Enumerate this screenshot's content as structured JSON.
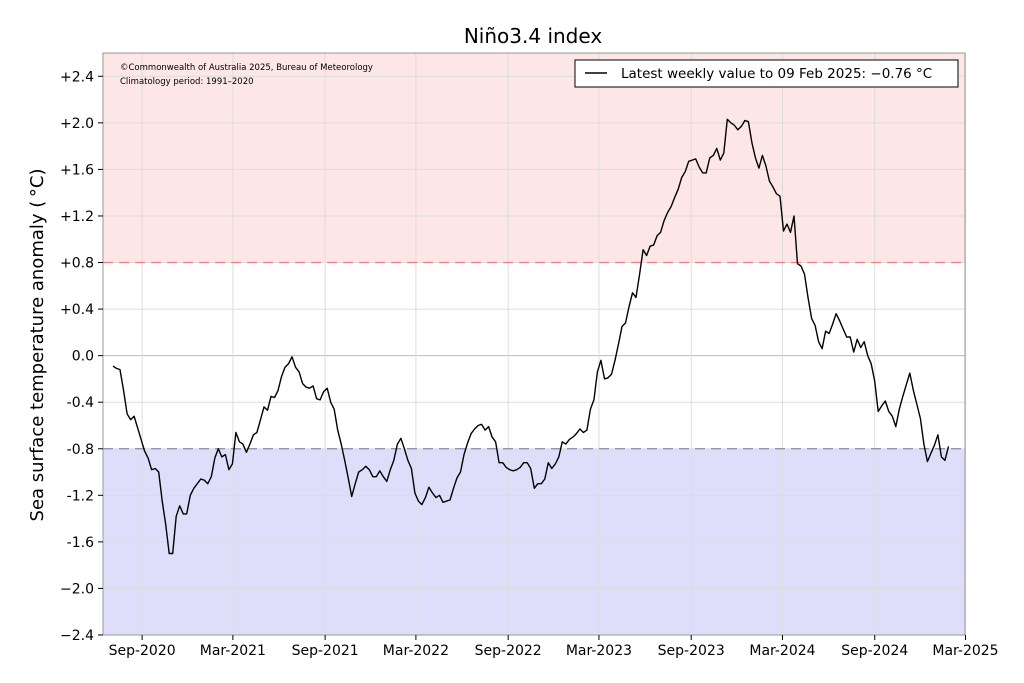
{
  "chart_data": {
    "type": "line",
    "title": "Niño3.4 index",
    "ylabel": "Sea surface temperature anomaly ( °C)",
    "xlabel": "",
    "credit_lines": [
      "©Commonwealth of Australia 2025, Bureau of Meteorology",
      "Climatology period: 1991–2020"
    ],
    "legend": {
      "label": "Latest weekly value to 09 Feb 2025: −0.76 °C",
      "placement": "top-right"
    },
    "ylim": [
      -2.4,
      2.6
    ],
    "yticks": [
      {
        "value": 2.4,
        "label": "+2.4"
      },
      {
        "value": 2.0,
        "label": "+2.0"
      },
      {
        "value": 1.6,
        "label": "+1.6"
      },
      {
        "value": 1.2,
        "label": "+1.2"
      },
      {
        "value": 0.8,
        "label": "+0.8"
      },
      {
        "value": 0.4,
        "label": "+0.4"
      },
      {
        "value": 0.0,
        "label": "0.0"
      },
      {
        "value": -0.4,
        "label": "-0.4"
      },
      {
        "value": -0.8,
        "label": "-0.8"
      },
      {
        "value": -1.2,
        "label": "-1.2"
      },
      {
        "value": -1.6,
        "label": "-1.6"
      },
      {
        "value": -2.0,
        "label": "−2.0"
      },
      {
        "value": -2.4,
        "label": "−2.4"
      }
    ],
    "xlim": [
      "2020-06-15",
      "2025-02-28"
    ],
    "xticks": [
      {
        "date": "2020-09-01",
        "label": "Sep-2020"
      },
      {
        "date": "2021-03-01",
        "label": "Mar-2021"
      },
      {
        "date": "2021-09-01",
        "label": "Sep-2021"
      },
      {
        "date": "2022-03-01",
        "label": "Mar-2022"
      },
      {
        "date": "2022-09-01",
        "label": "Sep-2022"
      },
      {
        "date": "2023-03-01",
        "label": "Mar-2023"
      },
      {
        "date": "2023-09-01",
        "label": "Sep-2023"
      },
      {
        "date": "2024-03-01",
        "label": "Mar-2024"
      },
      {
        "date": "2024-09-01",
        "label": "Sep-2024"
      },
      {
        "date": "2025-03-01",
        "label": "Mar-2025"
      }
    ],
    "thresholds": [
      {
        "value": 0.8,
        "color": "#f08080"
      },
      {
        "value": -0.8,
        "color": "#8888aa"
      }
    ],
    "bands": [
      {
        "from": 0.8,
        "to": 2.6,
        "color": "#fde6e6"
      },
      {
        "from": -2.4,
        "to": -0.8,
        "color": "#dedefb"
      }
    ],
    "grid": true,
    "series": [
      {
        "color": "#000000",
        "points": [
          [
            "2020-07-05",
            -0.09
          ],
          [
            "2020-07-12",
            -0.11
          ],
          [
            "2020-07-19",
            -0.12
          ],
          [
            "2020-07-26",
            -0.3
          ],
          [
            "2020-08-02",
            -0.5
          ],
          [
            "2020-08-09",
            -0.55
          ],
          [
            "2020-08-16",
            -0.52
          ],
          [
            "2020-08-23",
            -0.62
          ],
          [
            "2020-08-30",
            -0.72
          ],
          [
            "2020-09-06",
            -0.82
          ],
          [
            "2020-09-13",
            -0.88
          ],
          [
            "2020-09-20",
            -0.98
          ],
          [
            "2020-09-27",
            -0.97
          ],
          [
            "2020-10-04",
            -1.0
          ],
          [
            "2020-10-11",
            -1.25
          ],
          [
            "2020-10-18",
            -1.45
          ],
          [
            "2020-10-25",
            -1.7
          ],
          [
            "2020-11-01",
            -1.7
          ],
          [
            "2020-11-08",
            -1.38
          ],
          [
            "2020-11-15",
            -1.29
          ],
          [
            "2020-11-22",
            -1.36
          ],
          [
            "2020-11-29",
            -1.36
          ],
          [
            "2020-12-06",
            -1.2
          ],
          [
            "2020-12-13",
            -1.14
          ],
          [
            "2020-12-20",
            -1.1
          ],
          [
            "2020-12-27",
            -1.06
          ],
          [
            "2021-01-03",
            -1.07
          ],
          [
            "2021-01-10",
            -1.1
          ],
          [
            "2021-01-17",
            -1.04
          ],
          [
            "2021-01-24",
            -0.88
          ],
          [
            "2021-01-31",
            -0.8
          ],
          [
            "2021-02-07",
            -0.87
          ],
          [
            "2021-02-14",
            -0.85
          ],
          [
            "2021-02-21",
            -0.98
          ],
          [
            "2021-02-28",
            -0.93
          ],
          [
            "2021-03-07",
            -0.66
          ],
          [
            "2021-03-14",
            -0.74
          ],
          [
            "2021-03-21",
            -0.76
          ],
          [
            "2021-03-28",
            -0.83
          ],
          [
            "2021-04-04",
            -0.76
          ],
          [
            "2021-04-11",
            -0.68
          ],
          [
            "2021-04-18",
            -0.66
          ],
          [
            "2021-04-25",
            -0.55
          ],
          [
            "2021-05-02",
            -0.44
          ],
          [
            "2021-05-09",
            -0.47
          ],
          [
            "2021-05-16",
            -0.35
          ],
          [
            "2021-05-23",
            -0.36
          ],
          [
            "2021-05-30",
            -0.3
          ],
          [
            "2021-06-06",
            -0.18
          ],
          [
            "2021-06-13",
            -0.1
          ],
          [
            "2021-06-20",
            -0.07
          ],
          [
            "2021-06-27",
            -0.01
          ],
          [
            "2021-07-04",
            -0.1
          ],
          [
            "2021-07-11",
            -0.14
          ],
          [
            "2021-07-18",
            -0.24
          ],
          [
            "2021-07-25",
            -0.27
          ],
          [
            "2021-08-01",
            -0.28
          ],
          [
            "2021-08-08",
            -0.26
          ],
          [
            "2021-08-15",
            -0.37
          ],
          [
            "2021-08-22",
            -0.38
          ],
          [
            "2021-08-29",
            -0.31
          ],
          [
            "2021-09-05",
            -0.28
          ],
          [
            "2021-09-12",
            -0.4
          ],
          [
            "2021-09-19",
            -0.46
          ],
          [
            "2021-09-26",
            -0.64
          ],
          [
            "2021-10-03",
            -0.76
          ],
          [
            "2021-10-10",
            -0.9
          ],
          [
            "2021-10-17",
            -1.05
          ],
          [
            "2021-10-24",
            -1.21
          ],
          [
            "2021-10-31",
            -1.1
          ],
          [
            "2021-11-07",
            -1.0
          ],
          [
            "2021-11-14",
            -0.98
          ],
          [
            "2021-11-21",
            -0.95
          ],
          [
            "2021-11-28",
            -0.98
          ],
          [
            "2021-12-05",
            -1.04
          ],
          [
            "2021-12-12",
            -1.04
          ],
          [
            "2021-12-19",
            -0.99
          ],
          [
            "2021-12-26",
            -1.04
          ],
          [
            "2022-01-02",
            -1.08
          ],
          [
            "2022-01-09",
            -0.98
          ],
          [
            "2022-01-16",
            -0.9
          ],
          [
            "2022-01-23",
            -0.76
          ],
          [
            "2022-01-30",
            -0.71
          ],
          [
            "2022-02-06",
            -0.8
          ],
          [
            "2022-02-13",
            -0.9
          ],
          [
            "2022-02-20",
            -0.97
          ],
          [
            "2022-02-27",
            -1.18
          ],
          [
            "2022-03-06",
            -1.25
          ],
          [
            "2022-03-13",
            -1.28
          ],
          [
            "2022-03-20",
            -1.22
          ],
          [
            "2022-03-27",
            -1.13
          ],
          [
            "2022-04-03",
            -1.18
          ],
          [
            "2022-04-10",
            -1.22
          ],
          [
            "2022-04-17",
            -1.2
          ],
          [
            "2022-04-24",
            -1.26
          ],
          [
            "2022-05-01",
            -1.25
          ],
          [
            "2022-05-08",
            -1.24
          ],
          [
            "2022-05-15",
            -1.14
          ],
          [
            "2022-05-22",
            -1.05
          ],
          [
            "2022-05-29",
            -1.0
          ],
          [
            "2022-06-05",
            -0.85
          ],
          [
            "2022-06-12",
            -0.75
          ],
          [
            "2022-06-19",
            -0.67
          ],
          [
            "2022-06-26",
            -0.63
          ],
          [
            "2022-07-03",
            -0.6
          ],
          [
            "2022-07-10",
            -0.59
          ],
          [
            "2022-07-17",
            -0.64
          ],
          [
            "2022-07-24",
            -0.61
          ],
          [
            "2022-07-31",
            -0.7
          ],
          [
            "2022-08-07",
            -0.74
          ],
          [
            "2022-08-14",
            -0.92
          ],
          [
            "2022-08-21",
            -0.92
          ],
          [
            "2022-08-28",
            -0.96
          ],
          [
            "2022-09-04",
            -0.98
          ],
          [
            "2022-09-11",
            -0.99
          ],
          [
            "2022-09-18",
            -0.98
          ],
          [
            "2022-09-25",
            -0.96
          ],
          [
            "2022-10-02",
            -0.92
          ],
          [
            "2022-10-09",
            -0.92
          ],
          [
            "2022-10-16",
            -0.97
          ],
          [
            "2022-10-23",
            -1.14
          ],
          [
            "2022-10-30",
            -1.1
          ],
          [
            "2022-11-06",
            -1.1
          ],
          [
            "2022-11-13",
            -1.06
          ],
          [
            "2022-11-20",
            -0.92
          ],
          [
            "2022-11-27",
            -0.97
          ],
          [
            "2022-12-04",
            -0.93
          ],
          [
            "2022-12-11",
            -0.87
          ],
          [
            "2022-12-18",
            -0.74
          ],
          [
            "2022-12-25",
            -0.76
          ],
          [
            "2023-01-01",
            -0.72
          ],
          [
            "2023-01-08",
            -0.7
          ],
          [
            "2023-01-15",
            -0.67
          ],
          [
            "2023-01-22",
            -0.63
          ],
          [
            "2023-01-29",
            -0.66
          ],
          [
            "2023-02-05",
            -0.64
          ],
          [
            "2023-02-12",
            -0.46
          ],
          [
            "2023-02-19",
            -0.38
          ],
          [
            "2023-02-26",
            -0.14
          ],
          [
            "2023-03-05",
            -0.04
          ],
          [
            "2023-03-12",
            -0.2
          ],
          [
            "2023-03-19",
            -0.19
          ],
          [
            "2023-03-26",
            -0.16
          ],
          [
            "2023-04-02",
            -0.04
          ],
          [
            "2023-04-09",
            0.1
          ],
          [
            "2023-04-16",
            0.25
          ],
          [
            "2023-04-23",
            0.28
          ],
          [
            "2023-04-30",
            0.42
          ],
          [
            "2023-05-07",
            0.54
          ],
          [
            "2023-05-14",
            0.5
          ],
          [
            "2023-05-21",
            0.7
          ],
          [
            "2023-05-28",
            0.91
          ],
          [
            "2023-06-04",
            0.86
          ],
          [
            "2023-06-11",
            0.94
          ],
          [
            "2023-06-18",
            0.95
          ],
          [
            "2023-06-25",
            1.03
          ],
          [
            "2023-07-02",
            1.06
          ],
          [
            "2023-07-09",
            1.16
          ],
          [
            "2023-07-16",
            1.23
          ],
          [
            "2023-07-23",
            1.28
          ],
          [
            "2023-07-30",
            1.36
          ],
          [
            "2023-08-06",
            1.43
          ],
          [
            "2023-08-13",
            1.53
          ],
          [
            "2023-08-20",
            1.58
          ],
          [
            "2023-08-27",
            1.67
          ],
          [
            "2023-09-03",
            1.68
          ],
          [
            "2023-09-10",
            1.69
          ],
          [
            "2023-09-17",
            1.62
          ],
          [
            "2023-09-24",
            1.57
          ],
          [
            "2023-10-01",
            1.57
          ],
          [
            "2023-10-08",
            1.7
          ],
          [
            "2023-10-15",
            1.72
          ],
          [
            "2023-10-22",
            1.78
          ],
          [
            "2023-10-29",
            1.68
          ],
          [
            "2023-11-05",
            1.74
          ],
          [
            "2023-11-12",
            2.03
          ],
          [
            "2023-11-19",
            2.0
          ],
          [
            "2023-11-26",
            1.98
          ],
          [
            "2023-12-03",
            1.94
          ],
          [
            "2023-12-10",
            1.97
          ],
          [
            "2023-12-17",
            2.02
          ],
          [
            "2023-12-24",
            2.01
          ],
          [
            "2023-12-31",
            1.83
          ],
          [
            "2024-01-07",
            1.7
          ],
          [
            "2024-01-14",
            1.61
          ],
          [
            "2024-01-21",
            1.72
          ],
          [
            "2024-01-28",
            1.63
          ],
          [
            "2024-02-04",
            1.5
          ],
          [
            "2024-02-11",
            1.45
          ],
          [
            "2024-02-18",
            1.39
          ],
          [
            "2024-02-25",
            1.37
          ],
          [
            "2024-03-03",
            1.07
          ],
          [
            "2024-03-10",
            1.13
          ],
          [
            "2024-03-17",
            1.06
          ],
          [
            "2024-03-24",
            1.2
          ],
          [
            "2024-03-31",
            0.79
          ],
          [
            "2024-04-07",
            0.77
          ],
          [
            "2024-04-14",
            0.7
          ],
          [
            "2024-04-21",
            0.5
          ],
          [
            "2024-04-28",
            0.32
          ],
          [
            "2024-05-05",
            0.26
          ],
          [
            "2024-05-12",
            0.12
          ],
          [
            "2024-05-19",
            0.06
          ],
          [
            "2024-05-26",
            0.21
          ],
          [
            "2024-06-02",
            0.19
          ],
          [
            "2024-06-09",
            0.27
          ],
          [
            "2024-06-16",
            0.36
          ],
          [
            "2024-06-23",
            0.3
          ],
          [
            "2024-06-30",
            0.23
          ],
          [
            "2024-07-07",
            0.16
          ],
          [
            "2024-07-14",
            0.16
          ],
          [
            "2024-07-21",
            0.03
          ],
          [
            "2024-07-28",
            0.14
          ],
          [
            "2024-08-04",
            0.07
          ],
          [
            "2024-08-11",
            0.12
          ],
          [
            "2024-08-18",
            0.0
          ],
          [
            "2024-08-25",
            -0.07
          ],
          [
            "2024-09-01",
            -0.22
          ],
          [
            "2024-09-08",
            -0.48
          ],
          [
            "2024-09-15",
            -0.43
          ],
          [
            "2024-09-22",
            -0.39
          ],
          [
            "2024-09-29",
            -0.48
          ],
          [
            "2024-10-06",
            -0.52
          ],
          [
            "2024-10-13",
            -0.61
          ],
          [
            "2024-10-20",
            -0.46
          ],
          [
            "2024-10-27",
            -0.35
          ],
          [
            "2024-11-03",
            -0.25
          ],
          [
            "2024-11-10",
            -0.15
          ],
          [
            "2024-11-17",
            -0.3
          ],
          [
            "2024-11-24",
            -0.42
          ],
          [
            "2024-12-01",
            -0.54
          ],
          [
            "2024-12-08",
            -0.76
          ],
          [
            "2024-12-15",
            -0.91
          ],
          [
            "2024-12-22",
            -0.84
          ],
          [
            "2024-12-29",
            -0.77
          ],
          [
            "2025-01-05",
            -0.68
          ],
          [
            "2025-01-12",
            -0.87
          ],
          [
            "2025-01-19",
            -0.9
          ],
          [
            "2025-01-26",
            -0.78
          ]
        ]
      }
    ]
  }
}
